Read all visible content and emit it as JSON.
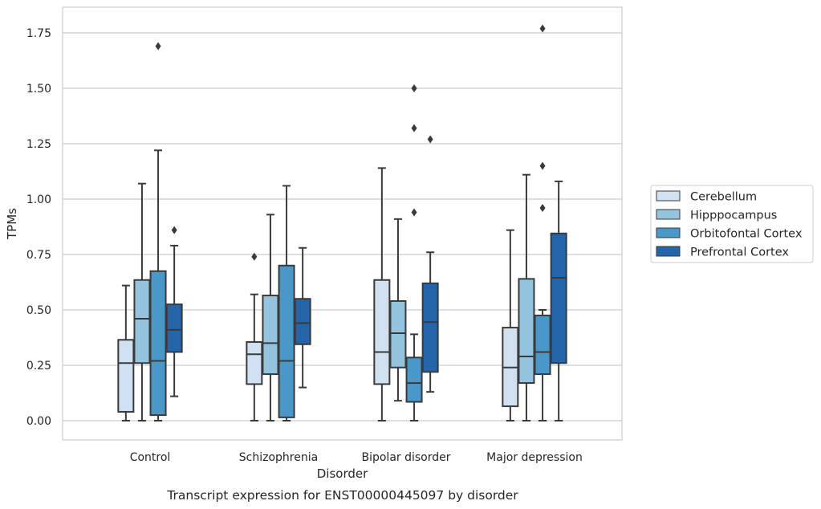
{
  "caption": "Transcript expression for ENST00000445097 by disorder",
  "chart_data": {
    "type": "box",
    "title": "",
    "xlabel": "Disorder",
    "ylabel": "TPMs",
    "ylim": [
      -0.085,
      1.86
    ],
    "yticks": [
      "0.00",
      "0.25",
      "0.50",
      "0.75",
      "1.00",
      "1.25",
      "1.50",
      "1.75"
    ],
    "ytick_values": [
      0,
      0.25,
      0.5,
      0.75,
      1.0,
      1.25,
      1.5,
      1.75
    ],
    "grid": "horizontal",
    "legend_position": "right",
    "categories": [
      "Control",
      "Schizophrenia",
      "Bipolar disorder",
      "Major depression"
    ],
    "series": [
      {
        "name": "Cerebellum",
        "color": "#d0e1f2",
        "boxes": [
          {
            "whislo": 0.0,
            "q1": 0.04,
            "med": 0.26,
            "q3": 0.365,
            "whishi": 0.61,
            "fliers": []
          },
          {
            "whislo": 0.0,
            "q1": 0.165,
            "med": 0.3,
            "q3": 0.355,
            "whishi": 0.57,
            "fliers": [
              0.74
            ]
          },
          {
            "whislo": 0.0,
            "q1": 0.165,
            "med": 0.31,
            "q3": 0.635,
            "whishi": 1.14,
            "fliers": []
          },
          {
            "whislo": 0.0,
            "q1": 0.065,
            "med": 0.24,
            "q3": 0.42,
            "whishi": 0.86,
            "fliers": []
          }
        ]
      },
      {
        "name": "Hipppocampus",
        "color": "#94c4df",
        "boxes": [
          {
            "whislo": 0.0,
            "q1": 0.26,
            "med": 0.46,
            "q3": 0.635,
            "whishi": 1.07,
            "fliers": []
          },
          {
            "whislo": 0.0,
            "q1": 0.21,
            "med": 0.35,
            "q3": 0.565,
            "whishi": 0.93,
            "fliers": []
          },
          {
            "whislo": 0.09,
            "q1": 0.24,
            "med": 0.395,
            "q3": 0.54,
            "whishi": 0.91,
            "fliers": []
          },
          {
            "whislo": 0.0,
            "q1": 0.17,
            "med": 0.29,
            "q3": 0.64,
            "whishi": 1.11,
            "fliers": []
          }
        ]
      },
      {
        "name": "Orbitofontal Cortex",
        "color": "#4a98c9",
        "boxes": [
          {
            "whislo": 0.0,
            "q1": 0.025,
            "med": 0.27,
            "q3": 0.675,
            "whishi": 1.22,
            "fliers": [
              1.69
            ]
          },
          {
            "whislo": 0.0,
            "q1": 0.015,
            "med": 0.27,
            "q3": 0.7,
            "whishi": 1.06,
            "fliers": []
          },
          {
            "whislo": 0.0,
            "q1": 0.085,
            "med": 0.17,
            "q3": 0.285,
            "whishi": 0.39,
            "fliers": [
              0.94,
              1.32,
              1.5
            ]
          },
          {
            "whislo": 0.0,
            "q1": 0.21,
            "med": 0.31,
            "q3": 0.475,
            "whishi": 0.5,
            "fliers": [
              0.96,
              1.15,
              1.77
            ]
          }
        ]
      },
      {
        "name": "Prefrontal Cortex",
        "color": "#2464a8",
        "boxes": [
          {
            "whislo": 0.11,
            "q1": 0.31,
            "med": 0.41,
            "q3": 0.525,
            "whishi": 0.79,
            "fliers": [
              0.86
            ]
          },
          {
            "whislo": 0.15,
            "q1": 0.345,
            "med": 0.44,
            "q3": 0.55,
            "whishi": 0.78,
            "fliers": []
          },
          {
            "whislo": 0.13,
            "q1": 0.22,
            "med": 0.445,
            "q3": 0.62,
            "whishi": 0.76,
            "fliers": [
              1.27
            ]
          },
          {
            "whislo": 0.0,
            "q1": 0.26,
            "med": 0.645,
            "q3": 0.845,
            "whishi": 1.08,
            "fliers": []
          }
        ]
      }
    ]
  }
}
